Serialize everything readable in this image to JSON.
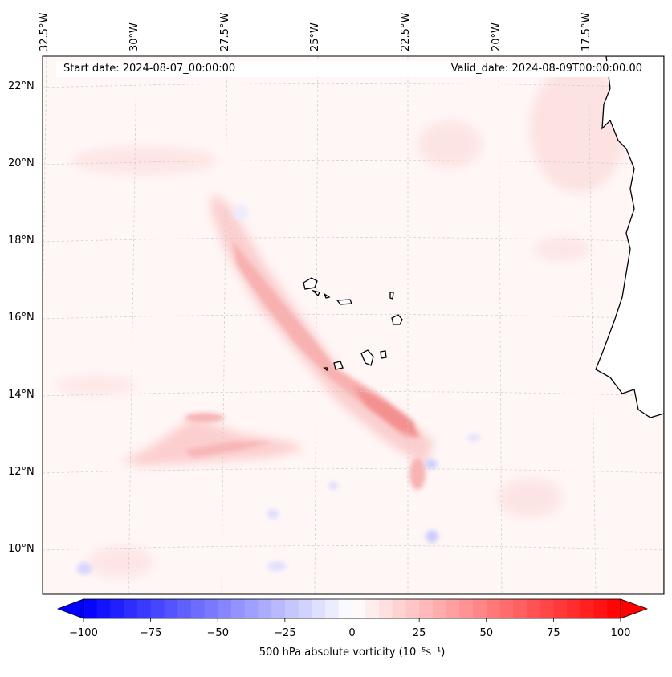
{
  "map": {
    "start_date": "Start date: 2024-08-07_00:00:00",
    "valid_date": "Valid_date: 2024-08-09T00:00:00.00",
    "lon_labels": [
      "32.5°W",
      "30°W",
      "27.5°W",
      "25°W",
      "22.5°W",
      "20°W",
      "17.5°W"
    ],
    "lat_labels": [
      "22°N",
      "20°N",
      "18°N",
      "16°N",
      "14°N",
      "12°N",
      "10°N"
    ],
    "land_color": "#ffffff",
    "background_color": "#fff6f6"
  },
  "colorbar": {
    "label": "500 hPa absolute vorticity (10⁻⁵s⁻¹)",
    "ticks": [
      "−100",
      "−75",
      "−50",
      "−25",
      "0",
      "25",
      "50",
      "75",
      "100"
    ],
    "min": -100,
    "max": 100,
    "colormap": "bwr",
    "low_color": "#0000ff",
    "mid_color": "#ffffff",
    "high_color": "#ff0000"
  }
}
